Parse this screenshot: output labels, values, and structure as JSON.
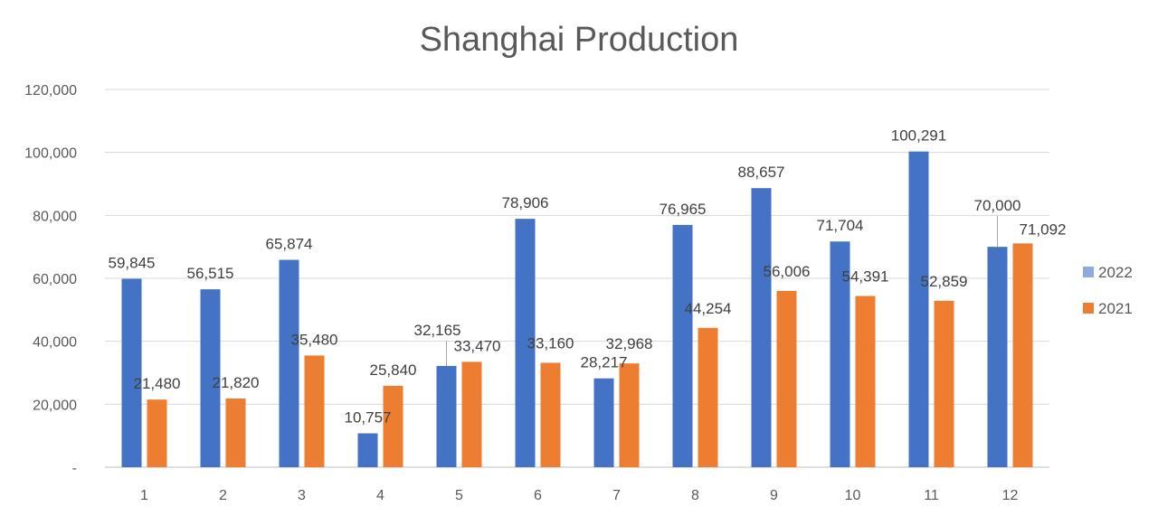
{
  "chart_data": {
    "type": "bar",
    "title": "Shanghai Production",
    "categories": [
      "1",
      "2",
      "3",
      "4",
      "5",
      "6",
      "7",
      "8",
      "9",
      "10",
      "11",
      "12"
    ],
    "series": [
      {
        "name": "2022",
        "color": "#4472C4",
        "values": [
          59845,
          56515,
          65874,
          10757,
          32165,
          78906,
          28217,
          76965,
          88657,
          71704,
          100291,
          70000
        ],
        "labels": [
          "59,845",
          "56,515",
          "65,874",
          "10,757",
          "32,165",
          "78,906",
          "28,217",
          "76,965",
          "88,657",
          "71,704",
          "100,291",
          "70,000"
        ]
      },
      {
        "name": "2021",
        "color": "#ED7D31",
        "values": [
          21480,
          21820,
          35480,
          25840,
          33470,
          33160,
          32968,
          44254,
          56006,
          54391,
          52859,
          71092
        ],
        "labels": [
          "21,480",
          "21,820",
          "35,480",
          "25,840",
          "33,470",
          "33,160",
          "32,968",
          "44,254",
          "56,006",
          "54,391",
          "52,859",
          "71,092"
        ]
      }
    ],
    "ylim": [
      0,
      120000
    ],
    "yticks": [
      0,
      20000,
      40000,
      60000,
      80000,
      100000,
      120000
    ],
    "ytick_labels": [
      "-",
      "20,000",
      "40,000",
      "60,000",
      "80,000",
      "100,000",
      "120,000"
    ],
    "grid": true,
    "legend_position": "right"
  }
}
